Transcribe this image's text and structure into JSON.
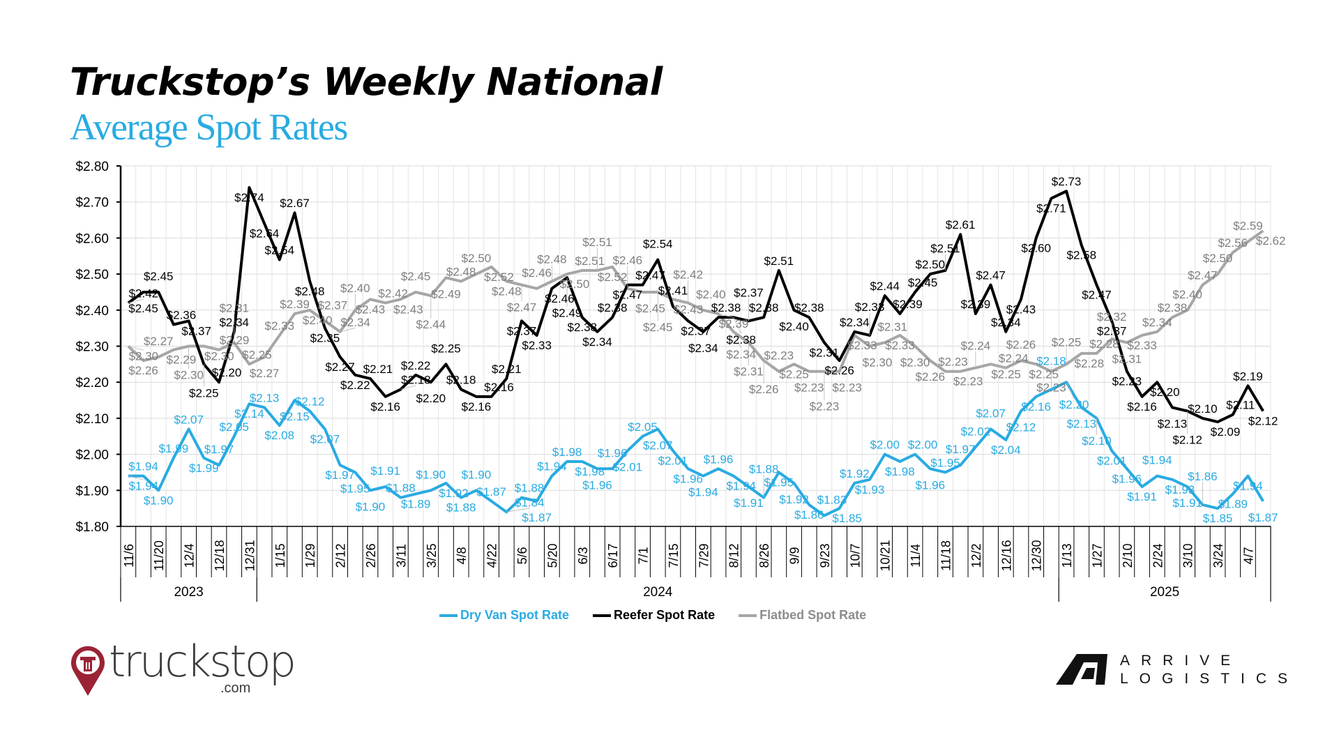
{
  "header": {
    "title_line1": "Truckstop’s Weekly National",
    "title_line2": "Average Spot Rates"
  },
  "colors": {
    "dry_van": "#29abe2",
    "reefer": "#000000",
    "flatbed": "#a6a6a6",
    "flatbed_label": "#7f7f7f",
    "title_accent": "#29abe2"
  },
  "chart_data": {
    "type": "line",
    "title": "Truckstop’s Weekly National Average Spot Rates",
    "xlabel": "",
    "ylabel": "",
    "ylim": [
      1.8,
      2.8
    ],
    "y_ticks": [
      "$1.80",
      "$1.90",
      "$2.00",
      "$2.10",
      "$2.20",
      "$2.30",
      "$2.40",
      "$2.50",
      "$2.60",
      "$2.70",
      "$2.80"
    ],
    "grid": true,
    "legend_position": "bottom",
    "x_tick_labels": [
      "11/6",
      "11/20",
      "12/4",
      "12/18",
      "12/31",
      "1/15",
      "1/29",
      "2/12",
      "2/26",
      "3/11",
      "3/25",
      "4/8",
      "4/22",
      "5/6",
      "5/20",
      "6/3",
      "6/17",
      "7/1",
      "7/15",
      "7/29",
      "8/12",
      "8/26",
      "9/9",
      "9/23",
      "10/7",
      "10/21",
      "11/4",
      "11/18",
      "12/2",
      "12/16",
      "12/30",
      "1/13",
      "1/27",
      "2/10",
      "2/24",
      "3/10",
      "3/24",
      "4/7"
    ],
    "years": [
      {
        "label": "2023",
        "start_week": 0,
        "end_week": 8
      },
      {
        "label": "2024",
        "start_week": 9,
        "end_week": 61
      },
      {
        "label": "2025",
        "start_week": 62,
        "end_week": 75
      }
    ],
    "series": [
      {
        "name": "Dry Van Spot Rate",
        "key": "dry_van",
        "values": [
          1.94,
          1.94,
          1.9,
          1.99,
          2.07,
          1.99,
          1.97,
          2.05,
          2.14,
          2.13,
          2.08,
          2.15,
          2.12,
          2.07,
          1.97,
          1.95,
          1.9,
          1.91,
          1.88,
          1.89,
          1.9,
          1.92,
          1.88,
          1.9,
          1.87,
          1.84,
          1.88,
          1.87,
          1.94,
          1.98,
          1.98,
          1.96,
          1.96,
          2.01,
          2.05,
          2.07,
          2.01,
          1.96,
          1.94,
          1.96,
          1.94,
          1.91,
          1.88,
          1.95,
          1.92,
          1.86,
          1.83,
          1.85,
          1.92,
          1.93,
          2.0,
          1.98,
          2.0,
          1.96,
          1.95,
          1.97,
          2.02,
          2.07,
          2.04,
          2.12,
          2.16,
          2.18,
          2.2,
          2.13,
          2.1,
          2.01,
          1.96,
          1.91,
          1.94,
          1.93,
          1.91,
          1.86,
          1.85,
          1.89,
          1.94,
          1.87
        ]
      },
      {
        "name": "Reefer Spot Rate",
        "key": "reefer",
        "values": [
          2.42,
          2.45,
          2.45,
          2.36,
          2.37,
          2.25,
          2.2,
          2.34,
          2.74,
          2.64,
          2.54,
          2.67,
          2.48,
          2.35,
          2.27,
          2.22,
          2.21,
          2.16,
          2.18,
          2.22,
          2.2,
          2.25,
          2.18,
          2.16,
          2.16,
          2.21,
          2.37,
          2.33,
          2.46,
          2.49,
          2.38,
          2.34,
          2.38,
          2.47,
          2.47,
          2.54,
          2.41,
          2.37,
          2.34,
          2.38,
          2.38,
          2.37,
          2.38,
          2.51,
          2.4,
          2.38,
          2.31,
          2.26,
          2.34,
          2.33,
          2.44,
          2.39,
          2.45,
          2.5,
          2.51,
          2.61,
          2.39,
          2.47,
          2.34,
          2.43,
          2.6,
          2.71,
          2.73,
          2.58,
          2.47,
          2.37,
          2.23,
          2.16,
          2.2,
          2.13,
          2.12,
          2.1,
          2.09,
          2.11,
          2.19,
          2.12
        ]
      },
      {
        "name": "Flatbed Spot Rate",
        "key": "flatbed",
        "values": [
          2.3,
          2.26,
          2.27,
          2.29,
          2.3,
          2.3,
          2.29,
          2.31,
          2.25,
          2.27,
          2.33,
          2.39,
          2.4,
          2.37,
          2.34,
          2.4,
          2.43,
          2.42,
          2.43,
          2.45,
          2.44,
          2.49,
          2.48,
          2.5,
          2.52,
          2.48,
          2.47,
          2.46,
          2.48,
          2.5,
          2.51,
          2.51,
          2.52,
          2.46,
          2.45,
          2.45,
          2.43,
          2.42,
          2.4,
          2.39,
          2.34,
          2.31,
          2.26,
          2.23,
          2.25,
          2.23,
          2.23,
          2.23,
          2.33,
          2.3,
          2.31,
          2.33,
          2.3,
          2.26,
          2.23,
          2.23,
          2.24,
          2.25,
          2.24,
          2.26,
          2.25,
          2.23,
          2.25,
          2.28,
          2.28,
          2.32,
          2.31,
          2.33,
          2.34,
          2.38,
          2.4,
          2.47,
          2.5,
          2.56,
          2.59,
          2.62
        ]
      }
    ]
  },
  "legend": {
    "dry_van": "Dry Van Spot Rate",
    "reefer": "Reefer Spot Rate",
    "flatbed": "Flatbed Spot Rate"
  },
  "logos": {
    "truckstop_main": "truckstop",
    "truckstop_com": ".com",
    "arrive_top": "ARRIVE",
    "arrive_bottom": "LOGISTICS"
  }
}
